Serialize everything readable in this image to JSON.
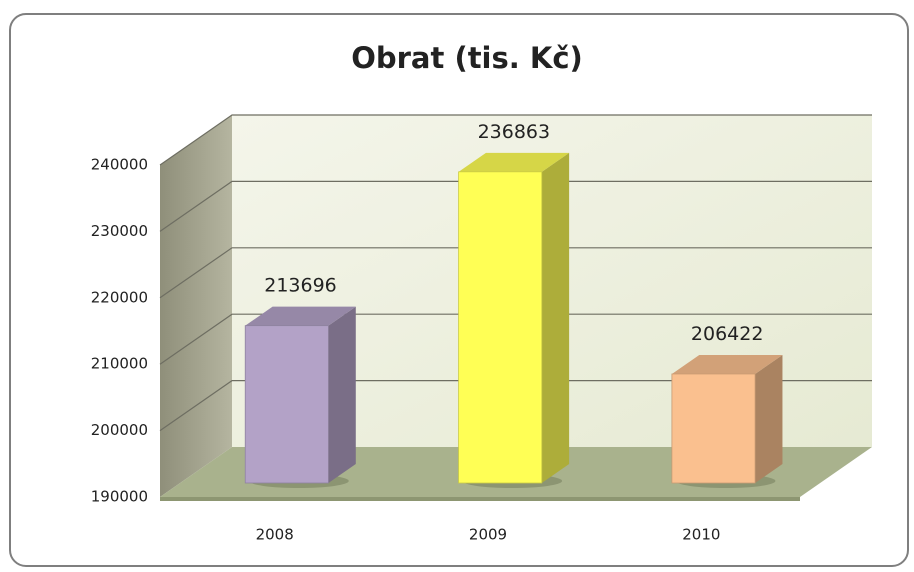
{
  "chart_data": {
    "type": "bar",
    "title": "Obrat (tis. Kč)",
    "categories": [
      "2008",
      "2009",
      "2010"
    ],
    "values": [
      213696,
      236863,
      206422
    ],
    "colors": [
      "#b3a2c7",
      "#ffff55",
      "#fac08f"
    ],
    "ylim": [
      190000,
      240000
    ],
    "yticks": [
      190000,
      200000,
      210000,
      220000,
      230000,
      240000
    ],
    "grid": true
  }
}
